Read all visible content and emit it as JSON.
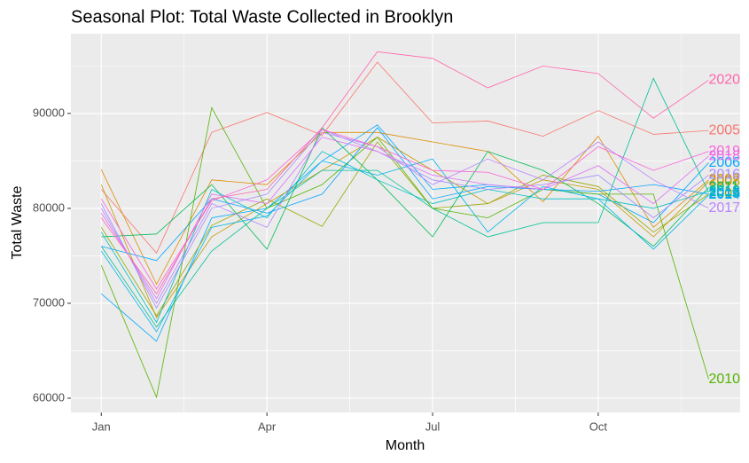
{
  "chart_data": {
    "type": "line",
    "title": "Seasonal Plot: Total Waste Collected in Brooklyn",
    "x_label": "Month",
    "y_label": "Total Waste",
    "x": [
      1,
      2,
      3,
      4,
      5,
      6,
      7,
      8,
      9,
      10,
      11,
      12
    ],
    "xlim": [
      0.45,
      12.57
    ],
    "xticks": [
      {
        "value": 1,
        "label": "Jan"
      },
      {
        "value": 4,
        "label": "Apr"
      },
      {
        "value": 7,
        "label": "Jul"
      },
      {
        "value": 10,
        "label": "Oct"
      }
    ],
    "ylim": [
      58500,
      98400
    ],
    "yticks": [
      60000,
      70000,
      80000,
      90000
    ],
    "grid": true,
    "series": [
      {
        "name": "2005",
        "color": "#F8766D",
        "values": [
          82000,
          75300,
          88000,
          90100,
          87700,
          95400,
          89000,
          89200,
          87600,
          90300,
          87800,
          88200
        ]
      },
      {
        "name": "2006",
        "color": "#00A9FF",
        "values": [
          71000,
          66000,
          79000,
          80000,
          85000,
          88800,
          82000,
          82500,
          82000,
          81500,
          78500,
          84800
        ]
      },
      {
        "name": "2007",
        "color": "#DE8C00",
        "values": [
          84100,
          72000,
          83000,
          82500,
          88000,
          88000,
          87000,
          86000,
          80700,
          87600,
          78000,
          83000
        ]
      },
      {
        "name": "2008",
        "color": "#C49A00",
        "values": [
          82500,
          68500,
          77000,
          80500,
          84000,
          87500,
          84000,
          80500,
          83000,
          82000,
          77000,
          82800
        ]
      },
      {
        "name": "2009",
        "color": "#99A800",
        "values": [
          78000,
          68700,
          78200,
          81000,
          78100,
          87000,
          80000,
          80500,
          83500,
          82300,
          77500,
          81500
        ]
      },
      {
        "name": "2010",
        "color": "#53B400",
        "values": [
          74000,
          60100,
          90600,
          80000,
          82500,
          87500,
          80000,
          79000,
          82000,
          81500,
          81500,
          62000
        ]
      },
      {
        "name": "2011",
        "color": "#00BC56",
        "values": [
          77000,
          77300,
          82500,
          75700,
          88500,
          83000,
          77000,
          86000,
          84000,
          80500,
          76000,
          82200
        ]
      },
      {
        "name": "2012",
        "color": "#00C094",
        "values": [
          76000,
          67500,
          75500,
          80000,
          84000,
          84000,
          80000,
          77000,
          78500,
          78500,
          93700,
          81700
        ]
      },
      {
        "name": "2013",
        "color": "#00BFC4",
        "values": [
          77500,
          68000,
          82000,
          79000,
          86000,
          83000,
          80500,
          82000,
          81000,
          81000,
          80000,
          81800
        ]
      },
      {
        "name": "2014",
        "color": "#00B6EB",
        "values": [
          75500,
          67000,
          78000,
          79200,
          85000,
          83500,
          85200,
          77500,
          82300,
          81000,
          75700,
          81400
        ]
      },
      {
        "name": "2015",
        "color": "#06A4FF",
        "values": [
          76000,
          74500,
          81000,
          79500,
          81500,
          88500,
          81000,
          82300,
          82000,
          81800,
          82500,
          81500
        ]
      },
      {
        "name": "2016",
        "color": "#A58AFF",
        "values": [
          80500,
          69500,
          80000,
          81500,
          88300,
          86000,
          83000,
          82000,
          82500,
          83500,
          79000,
          83500
        ]
      },
      {
        "name": "2017",
        "color": "#B983FF",
        "values": [
          80000,
          70000,
          80500,
          78000,
          88000,
          86500,
          82500,
          85200,
          83000,
          87000,
          83000,
          80000
        ]
      },
      {
        "name": "2018",
        "color": "#DF70F8",
        "values": [
          79500,
          70500,
          81500,
          80500,
          87500,
          86000,
          83500,
          82500,
          82000,
          84500,
          80500,
          85500
        ]
      },
      {
        "name": "2019",
        "color": "#FB61D7",
        "values": [
          81000,
          71500,
          80800,
          83000,
          88300,
          86500,
          84000,
          83800,
          82000,
          86500,
          84000,
          86000
        ]
      },
      {
        "name": "2020",
        "color": "#FF65AC",
        "values": [
          79000,
          71000,
          81000,
          82000,
          88500,
          96500,
          95800,
          92700,
          95000,
          94200,
          89500,
          93500
        ]
      }
    ]
  }
}
